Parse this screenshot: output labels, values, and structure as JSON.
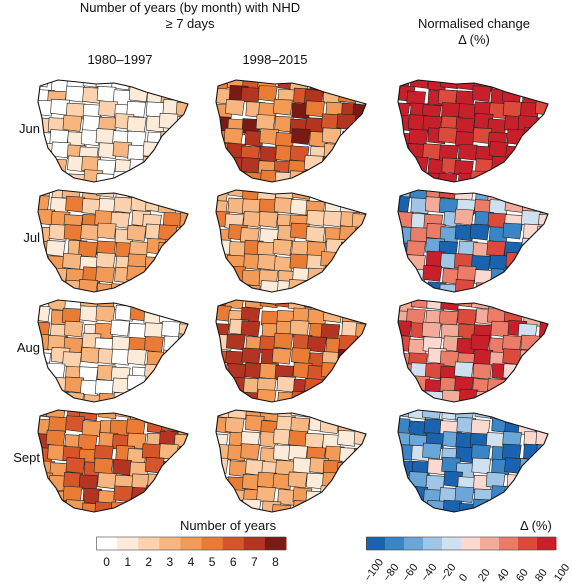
{
  "header": {
    "left_line1": "Number of years (by month) with NHD",
    "left_line2": "≥ 7 days",
    "right_line1": "Normalised change",
    "right_line2": "Δ (%)"
  },
  "columns": [
    "1980–1997",
    "1998–2015"
  ],
  "rows": [
    "Jun",
    "Jul",
    "Aug",
    "Sept"
  ],
  "legend_years": {
    "title": "Number of years",
    "ticks": [
      "0",
      "1",
      "2",
      "3",
      "4",
      "5",
      "6",
      "7",
      "8"
    ],
    "colors": [
      "#ffffff",
      "#fdebd9",
      "#fbd2ad",
      "#f7b67f",
      "#f29a56",
      "#ea7b35",
      "#d7552a",
      "#b33420",
      "#7a1a14"
    ]
  },
  "legend_change": {
    "title": "Δ (%)",
    "ticks": [
      "−100",
      "−80",
      "−60",
      "−40",
      "−20",
      "0",
      "20",
      "40",
      "60",
      "80",
      "100"
    ],
    "colors": [
      "#1a63b0",
      "#3a85c6",
      "#6aa6d8",
      "#9fc6e6",
      "#cfe0ef",
      "#fbd8d0",
      "#f4ab9a",
      "#ea7c68",
      "#dc4a3c",
      "#c8202a"
    ]
  },
  "panels": [
    {
      "row": "Jun",
      "col": 0,
      "palette": "years",
      "base": 1,
      "spread": 2
    },
    {
      "row": "Jun",
      "col": 1,
      "palette": "years",
      "base": 5,
      "spread": 3
    },
    {
      "row": "Jun",
      "col": 2,
      "palette": "change",
      "base": 9,
      "spread": 1
    },
    {
      "row": "Jul",
      "col": 0,
      "palette": "years",
      "base": 3,
      "spread": 2
    },
    {
      "row": "Jul",
      "col": 1,
      "palette": "years",
      "base": 3,
      "spread": 2
    },
    {
      "row": "Jul",
      "col": 2,
      "palette": "change",
      "base": 4,
      "spread": 5
    },
    {
      "row": "Aug",
      "col": 0,
      "palette": "years",
      "base": 2,
      "spread": 3
    },
    {
      "row": "Aug",
      "col": 1,
      "palette": "years",
      "base": 5,
      "spread": 3
    },
    {
      "row": "Aug",
      "col": 2,
      "palette": "change",
      "base": 7,
      "spread": 3
    },
    {
      "row": "Sept",
      "col": 0,
      "palette": "years",
      "base": 5,
      "spread": 2
    },
    {
      "row": "Sept",
      "col": 1,
      "palette": "years",
      "base": 3,
      "spread": 2
    },
    {
      "row": "Sept",
      "col": 2,
      "palette": "change",
      "base": 2,
      "spread": 3
    }
  ]
}
